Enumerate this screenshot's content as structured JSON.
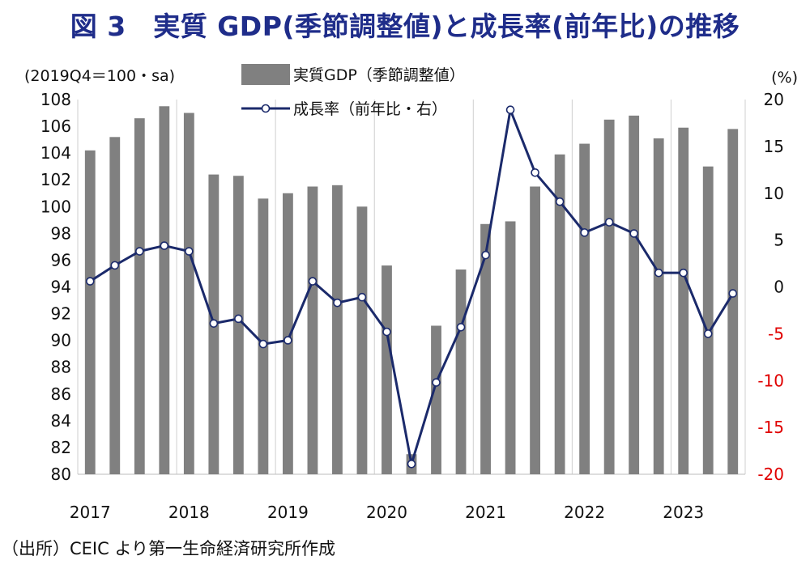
{
  "title": "図 3　実質 GDP(季節調整値)と成長率(前年比)の推移",
  "source_note": "（出所）CEIC より第一生命経済研究所作成",
  "colors": {
    "title": "#1f2d8a",
    "bar": "#808080",
    "line": "#1b2a6b",
    "negative_tick": "#e00000"
  },
  "chart_data": {
    "type": "bar+line",
    "left_axis_unit": "(2019Q4＝100・sa)",
    "right_axis_unit": "(%)",
    "left_ylim": [
      80,
      108
    ],
    "left_ticks": [
      80,
      82,
      84,
      86,
      88,
      90,
      92,
      94,
      96,
      98,
      100,
      102,
      104,
      106,
      108
    ],
    "right_ylim": [
      -20,
      20
    ],
    "right_ticks": [
      -20,
      -15,
      -10,
      -5,
      0,
      5,
      10,
      15,
      20
    ],
    "year_labels": [
      "2017",
      "2018",
      "2019",
      "2020",
      "2021",
      "2022",
      "2023"
    ],
    "categories": [
      "2017Q1",
      "2017Q2",
      "2017Q3",
      "2017Q4",
      "2018Q1",
      "2018Q2",
      "2018Q3",
      "2018Q4",
      "2019Q1",
      "2019Q2",
      "2019Q3",
      "2019Q4",
      "2020Q1",
      "2020Q2",
      "2020Q3",
      "2020Q4",
      "2021Q1",
      "2021Q2",
      "2021Q3",
      "2021Q4",
      "2022Q1",
      "2022Q2",
      "2022Q3",
      "2022Q4",
      "2023Q1",
      "2023Q2",
      "2023Q3"
    ],
    "series": [
      {
        "name": "実質GDP（季節調整値）",
        "type": "bar",
        "axis": "left",
        "values": [
          104.2,
          105.2,
          106.6,
          107.5,
          107.0,
          102.4,
          102.3,
          100.6,
          101.0,
          101.5,
          101.6,
          100.0,
          95.6,
          81.5,
          91.1,
          95.3,
          98.7,
          98.9,
          101.5,
          103.9,
          104.7,
          106.5,
          106.8,
          105.1,
          105.9,
          103.0,
          105.8
        ]
      },
      {
        "name": "成長率（前年比・右）",
        "type": "line",
        "axis": "right",
        "values": [
          0.6,
          2.3,
          3.8,
          4.4,
          3.8,
          -3.9,
          -3.4,
          -6.1,
          -5.7,
          0.6,
          -1.7,
          -1.1,
          -4.8,
          -18.9,
          -10.2,
          -4.3,
          3.4,
          18.9,
          12.2,
          9.1,
          5.8,
          6.9,
          5.7,
          1.5,
          1.5,
          -5.0,
          -0.7
        ]
      }
    ]
  }
}
